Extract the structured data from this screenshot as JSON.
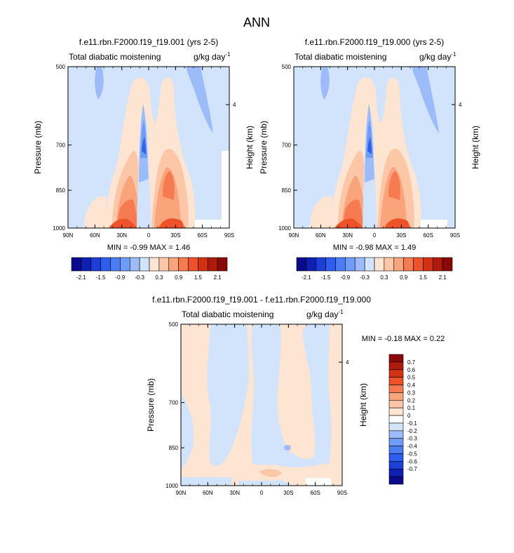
{
  "page": {
    "title": "ANN"
  },
  "panels": [
    {
      "case": "f.e11.rbn.F2000.f19_f19.001 (yrs 2-5)",
      "variable": "Total diabatic moistening",
      "units": "g/kg day",
      "units_exp": "-1",
      "ylabel_left": "Pressure (mb)",
      "ylabel_right": "Height (km)",
      "stats": "MIN =  -0.99  MAX =  1.46",
      "x_ticks": [
        "90N",
        "60N",
        "30N",
        "0",
        "30S",
        "60S",
        "90S"
      ],
      "y_ticks": [
        "500",
        "700",
        "850",
        "1000"
      ],
      "height_ticks": [
        "4"
      ]
    },
    {
      "case": "f.e11.rbn.F2000.f19_f19.000 (yrs 2-5)",
      "variable": "Total diabatic moistening",
      "units": "g/kg day",
      "units_exp": "-1",
      "ylabel_left": "Pressure (mb)",
      "ylabel_right": "Height (km)",
      "stats": "MIN =  -0.98  MAX =  1.49",
      "x_ticks": [
        "90N",
        "60N",
        "30N",
        "0",
        "30S",
        "60S",
        "90S"
      ],
      "y_ticks": [
        "500",
        "700",
        "850",
        "1000"
      ],
      "height_ticks": [
        "4"
      ]
    },
    {
      "case": "f.e11.rbn.F2000.f19_f19.001 - f.e11.rbn.F2000.f19_f19.000",
      "variable": "Total diabatic moistening",
      "units": "g/kg day",
      "units_exp": "-1",
      "ylabel_left": "Pressure (mb)",
      "ylabel_right": "Height (km)",
      "stats": "MIN =  -0.18  MAX =   0.22",
      "x_ticks": [
        "90N",
        "60N",
        "30N",
        "0",
        "30S",
        "60S",
        "90S"
      ],
      "y_ticks": [
        "500",
        "700",
        "850",
        "1000"
      ],
      "height_ticks": [
        "4"
      ]
    }
  ],
  "colorbars": {
    "main": {
      "colors": [
        "#0a0a8c",
        "#0e1fb4",
        "#1c3fd8",
        "#2d5ef0",
        "#4a7ef5",
        "#6f9cf7",
        "#9bbcf8",
        "#d2e4fc",
        "#fde5d2",
        "#fbc7a6",
        "#f9a47a",
        "#f67b50",
        "#ee5228",
        "#d23212",
        "#b01a0a",
        "#8a0808"
      ],
      "labels": [
        "-2.1",
        "-1.5",
        "-0.9",
        "-0.3",
        "0.3",
        "0.9",
        "1.5",
        "2.1"
      ]
    },
    "diff": {
      "colors": [
        "#8a0808",
        "#b01a0a",
        "#d23212",
        "#ee5228",
        "#f67b50",
        "#f9a47a",
        "#fbc7a6",
        "#fde5d2",
        "#ffffff",
        "#d2e4fc",
        "#9bbcf8",
        "#6f9cf7",
        "#4a7ef5",
        "#2d5ef0",
        "#1c3fd8",
        "#0e1fb4",
        "#0a0a8c"
      ],
      "labels": [
        "0.7",
        "0.6",
        "0.5",
        "0.4",
        "0.3",
        "0.2",
        "0.1",
        "0",
        "-0.1",
        "-0.2",
        "-0.3",
        "-0.4",
        "-0.5",
        "-0.6",
        "-0.7"
      ]
    }
  },
  "chart_data": [
    {
      "type": "heatmap",
      "title": "f.e11.rbn.F2000.f19_f19.001 (yrs 2-5)",
      "subtitle": "Total diabatic moistening",
      "units": "g/kg day-1",
      "xlabel": "",
      "ylabel": "Pressure (mb)",
      "x_ticks": [
        "90N",
        "60N",
        "30N",
        "0",
        "30S",
        "60S",
        "90S"
      ],
      "y_ticks": [
        500,
        700,
        850,
        1000
      ],
      "ylim": [
        1000,
        500
      ],
      "min": -0.99,
      "max": 1.46
    },
    {
      "type": "heatmap",
      "title": "f.e11.rbn.F2000.f19_f19.000 (yrs 2-5)",
      "subtitle": "Total diabatic moistening",
      "units": "g/kg day-1",
      "xlabel": "",
      "ylabel": "Pressure (mb)",
      "x_ticks": [
        "90N",
        "60N",
        "30N",
        "0",
        "30S",
        "60S",
        "90S"
      ],
      "y_ticks": [
        500,
        700,
        850,
        1000
      ],
      "ylim": [
        1000,
        500
      ],
      "min": -0.98,
      "max": 1.49
    },
    {
      "type": "heatmap",
      "title": "f.e11.rbn.F2000.f19_f19.001 - f.e11.rbn.F2000.f19_f19.000",
      "subtitle": "Total diabatic moistening",
      "units": "g/kg day-1",
      "xlabel": "",
      "ylabel": "Pressure (mb)",
      "x_ticks": [
        "90N",
        "60N",
        "30N",
        "0",
        "30S",
        "60S",
        "90S"
      ],
      "y_ticks": [
        500,
        700,
        850,
        1000
      ],
      "ylim": [
        1000,
        500
      ],
      "min": -0.18,
      "max": 0.22
    }
  ]
}
